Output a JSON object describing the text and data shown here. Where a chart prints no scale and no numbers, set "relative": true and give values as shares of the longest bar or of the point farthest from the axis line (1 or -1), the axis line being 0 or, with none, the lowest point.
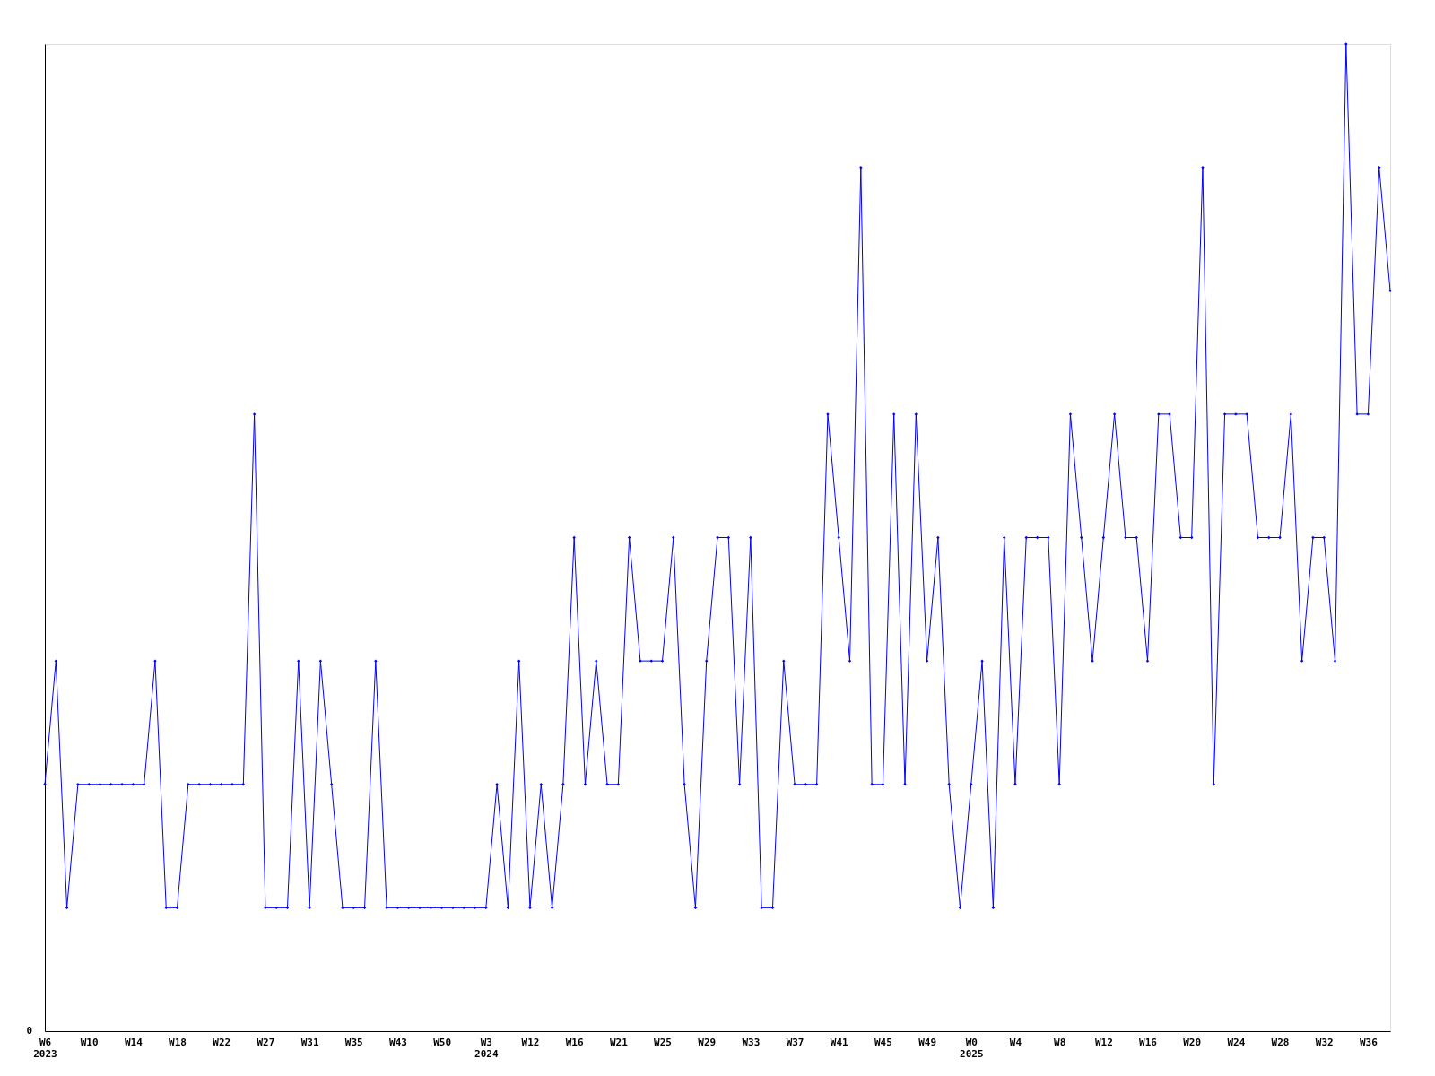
{
  "chart_data": {
    "type": "line",
    "relative": true,
    "annotations": [
      "0"
    ],
    "marker": "diamond",
    "grid": false,
    "categories": [
      "W6\n2023",
      null,
      null,
      null,
      "W10",
      null,
      null,
      null,
      "W14",
      null,
      null,
      null,
      "W18",
      null,
      null,
      null,
      "W22",
      null,
      null,
      null,
      "W27",
      null,
      null,
      null,
      "W31",
      null,
      null,
      null,
      "W35",
      null,
      null,
      null,
      "W43",
      null,
      null,
      null,
      "W50",
      null,
      null,
      null,
      "W3\n2024",
      null,
      null,
      null,
      "W12",
      null,
      null,
      null,
      "W16",
      null,
      null,
      null,
      "W21",
      null,
      null,
      null,
      "W25",
      null,
      null,
      null,
      "W29",
      null,
      null,
      null,
      "W33",
      null,
      null,
      null,
      "W37",
      null,
      null,
      null,
      "W41",
      null,
      null,
      null,
      "W45",
      null,
      null,
      null,
      "W49",
      null,
      null,
      null,
      "W0\n2025",
      null,
      null,
      null,
      "W4",
      null,
      null,
      null,
      "W8",
      null,
      null,
      null,
      "W12",
      null,
      null,
      null,
      "W16",
      null,
      null,
      null,
      "W20",
      null,
      null,
      null,
      "W24",
      null,
      null,
      null,
      "W28",
      null,
      null,
      null,
      "W32",
      null,
      null,
      null,
      "W36",
      null,
      null
    ],
    "series": [
      {
        "color": "#0000ff",
        "values": [
          0.25,
          0.375,
          0.125,
          0.25,
          0.25,
          0.25,
          0.25,
          0.25,
          0.25,
          0.25,
          0.375,
          0.125,
          0.125,
          0.25,
          0.25,
          0.25,
          0.25,
          0.25,
          0.25,
          0.625,
          0.125,
          0.125,
          0.125,
          0.375,
          0.125,
          0.375,
          0.25,
          0.125,
          0.125,
          0.125,
          0.375,
          0.125,
          0.125,
          0.125,
          0.125,
          0.125,
          0.125,
          0.125,
          0.125,
          0.125,
          0.125,
          0.25,
          0.125,
          0.375,
          0.125,
          0.25,
          0.125,
          0.25,
          0.5,
          0.25,
          0.375,
          0.25,
          0.25,
          0.5,
          0.375,
          0.375,
          0.375,
          0.5,
          0.25,
          0.125,
          0.375,
          0.5,
          0.5,
          0.25,
          0.5,
          0.125,
          0.125,
          0.375,
          0.25,
          0.25,
          0.25,
          0.625,
          0.5,
          0.375,
          0.875,
          0.25,
          0.25,
          0.625,
          0.25,
          0.625,
          0.375,
          0.5,
          0.25,
          0.125,
          0.25,
          0.375,
          0.125,
          0.5,
          0.25,
          0.5,
          0.5,
          0.5,
          0.25,
          0.625,
          0.5,
          0.375,
          0.5,
          0.625,
          0.5,
          0.5,
          0.375,
          0.625,
          0.625,
          0.5,
          0.5,
          0.875,
          0.25,
          0.625,
          0.625,
          0.625,
          0.5,
          0.5,
          0.5,
          0.625,
          0.375,
          0.5,
          0.5,
          0.375,
          1,
          0.625,
          0.625,
          0.875,
          0.75
        ]
      }
    ]
  }
}
